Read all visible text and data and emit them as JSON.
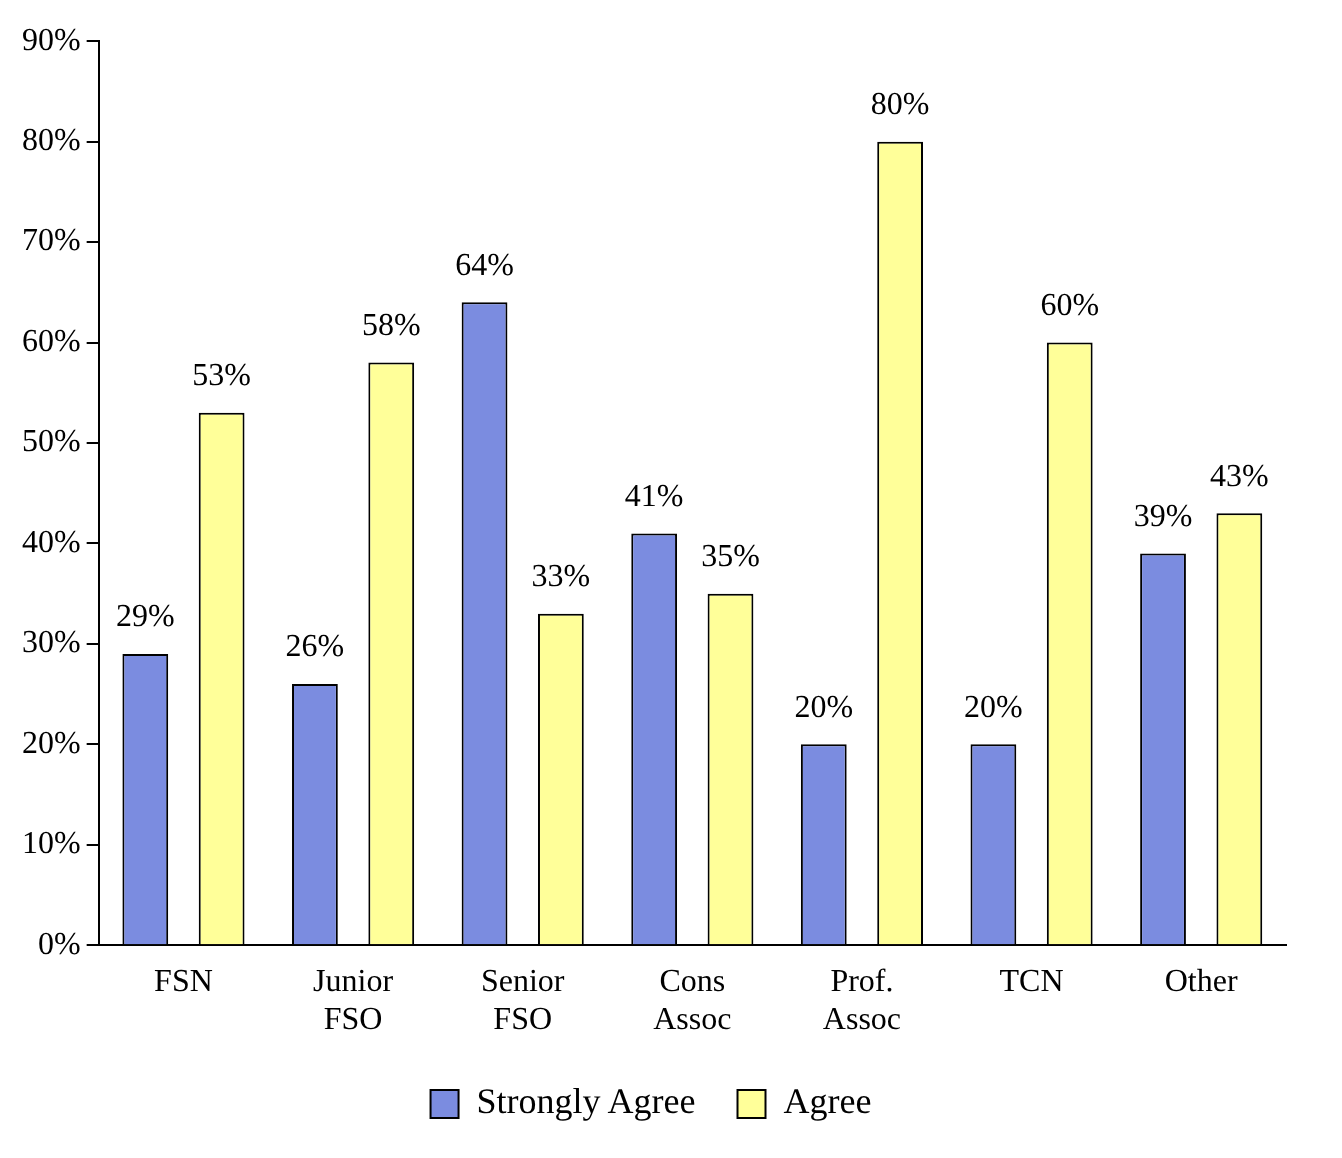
{
  "chart_data": {
    "type": "bar",
    "categories": [
      "FSN",
      "Junior FSO",
      "Senior FSO",
      "Cons Assoc",
      "Prof. Assoc",
      "TCN",
      "Other"
    ],
    "series": [
      {
        "name": "Strongly Agree",
        "color": "#7b8ce0",
        "values": [
          29,
          26,
          64,
          41,
          20,
          20,
          39
        ],
        "value_labels": [
          "29%",
          "26%",
          "64%",
          "41%",
          "20%",
          "20%",
          "39%"
        ]
      },
      {
        "name": "Agree",
        "color": "#ffff99",
        "values": [
          53,
          58,
          33,
          35,
          80,
          60,
          43
        ],
        "value_labels": [
          "53%",
          "58%",
          "33%",
          "35%",
          "80%",
          "60%",
          "43%"
        ]
      }
    ],
    "ylim": [
      0,
      90
    ],
    "yticks": [
      {
        "value": 0,
        "label": "0%"
      },
      {
        "value": 10,
        "label": "10%"
      },
      {
        "value": 20,
        "label": "20%"
      },
      {
        "value": 30,
        "label": "30%"
      },
      {
        "value": 40,
        "label": "40%"
      },
      {
        "value": 50,
        "label": "50%"
      },
      {
        "value": 60,
        "label": "60%"
      },
      {
        "value": 70,
        "label": "70%"
      },
      {
        "value": 80,
        "label": "80%"
      },
      {
        "value": 90,
        "label": "90%"
      }
    ],
    "grid": false,
    "legend": "bottom"
  }
}
